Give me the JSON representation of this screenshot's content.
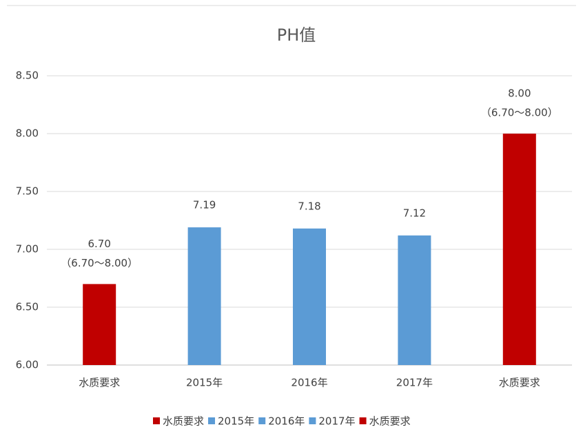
{
  "chart_data": {
    "type": "bar",
    "title": "PH值",
    "categories": [
      "水质要求",
      "2015年",
      "2016年",
      "2017年",
      "水质要求"
    ],
    "values": [
      6.7,
      7.19,
      7.18,
      7.12,
      8.0
    ],
    "value_labels": [
      "6.70",
      "7.19",
      "7.18",
      "7.12",
      "8.00"
    ],
    "value_notes": [
      "（6.70～8.00）",
      null,
      null,
      null,
      "（6.70～8.00）"
    ],
    "colors": [
      "#c00000",
      "#5b9bd5",
      "#5b9bd5",
      "#5b9bd5",
      "#c00000"
    ],
    "ylim": [
      6,
      8.5
    ],
    "yticks": [
      {
        "value": 6,
        "label": "6.00"
      },
      {
        "value": 6.5,
        "label": "6.50"
      },
      {
        "value": 7,
        "label": "7.00"
      },
      {
        "value": 7.5,
        "label": "7.50"
      },
      {
        "value": 8,
        "label": "8.00"
      },
      {
        "value": 8.5,
        "label": "8.50"
      }
    ],
    "grid": true,
    "legend": "bottom"
  }
}
